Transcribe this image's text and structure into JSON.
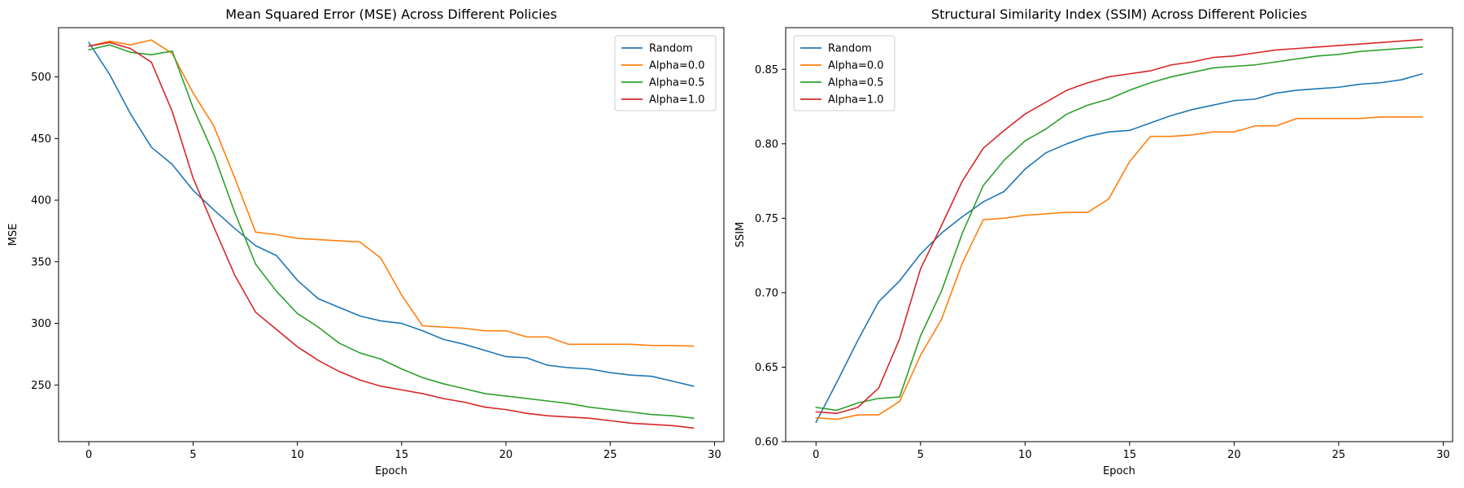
{
  "chart_data": [
    {
      "type": "line",
      "title": "Mean Squared Error (MSE) Across Different Policies",
      "xlabel": "Epoch",
      "ylabel": "MSE",
      "xlim": [
        -1.45,
        30.45
      ],
      "ylim": [
        204,
        540
      ],
      "xticks": [
        0,
        5,
        10,
        15,
        20,
        25,
        30
      ],
      "yticks": [
        250,
        300,
        350,
        400,
        450,
        500
      ],
      "tick_format": 0,
      "legend_position": "upper-right",
      "grid": false,
      "x": [
        0,
        1,
        2,
        3,
        4,
        5,
        6,
        7,
        8,
        9,
        10,
        11,
        12,
        13,
        14,
        15,
        16,
        17,
        18,
        19,
        20,
        21,
        22,
        23,
        24,
        25,
        26,
        27,
        28,
        29
      ],
      "series": [
        {
          "name": "Random",
          "color": "#1f77b4",
          "values": [
            528,
            502,
            470,
            443,
            429,
            408,
            392,
            377,
            363,
            355,
            335,
            320,
            313,
            306,
            302,
            300,
            294,
            287,
            283,
            278,
            273,
            272,
            266,
            264,
            263,
            260,
            258,
            257,
            253,
            249
          ]
        },
        {
          "name": "Alpha=0.0",
          "color": "#ff7f0e",
          "values": [
            525,
            529,
            526,
            530,
            519,
            487,
            460,
            418,
            374,
            372,
            369,
            368,
            367,
            366,
            353,
            323,
            298,
            297,
            296,
            294,
            294,
            289,
            289,
            283,
            283,
            283,
            283,
            282,
            282,
            281.5
          ]
        },
        {
          "name": "Alpha=0.5",
          "color": "#2ca02c",
          "values": [
            522,
            526,
            520,
            518,
            521,
            475,
            437,
            390,
            348,
            326,
            308,
            297,
            284,
            276,
            271,
            263,
            256,
            251,
            247,
            243,
            241,
            239,
            237,
            235,
            232,
            230,
            228,
            226,
            225,
            223
          ]
        },
        {
          "name": "Alpha=1.0",
          "color": "#d62728",
          "values": [
            525,
            528,
            523,
            512,
            472,
            418,
            378,
            339,
            309,
            295,
            281,
            270,
            261,
            254,
            249,
            246,
            243,
            239,
            236,
            232,
            230,
            227,
            225,
            224,
            223,
            221,
            219,
            218,
            217,
            215
          ]
        }
      ]
    },
    {
      "type": "line",
      "title": "Structural Similarity Index (SSIM) Across Different Policies",
      "xlabel": "Epoch",
      "ylabel": "SSIM",
      "xlim": [
        -1.45,
        30.45
      ],
      "ylim": [
        0.6,
        0.878
      ],
      "xticks": [
        0,
        5,
        10,
        15,
        20,
        25,
        30
      ],
      "yticks": [
        0.6,
        0.65,
        0.7,
        0.75,
        0.8,
        0.85
      ],
      "tick_format": 2,
      "legend_position": "upper-left",
      "grid": false,
      "x": [
        0,
        1,
        2,
        3,
        4,
        5,
        6,
        7,
        8,
        9,
        10,
        11,
        12,
        13,
        14,
        15,
        16,
        17,
        18,
        19,
        20,
        21,
        22,
        23,
        24,
        25,
        26,
        27,
        28,
        29
      ],
      "series": [
        {
          "name": "Random",
          "color": "#1f77b4",
          "values": [
            0.613,
            0.64,
            0.668,
            0.694,
            0.708,
            0.726,
            0.74,
            0.751,
            0.761,
            0.768,
            0.783,
            0.794,
            0.8,
            0.805,
            0.808,
            0.809,
            0.814,
            0.819,
            0.823,
            0.826,
            0.829,
            0.83,
            0.834,
            0.836,
            0.837,
            0.838,
            0.84,
            0.841,
            0.843,
            0.847
          ]
        },
        {
          "name": "Alpha=0.0",
          "color": "#ff7f0e",
          "values": [
            0.616,
            0.615,
            0.618,
            0.618,
            0.627,
            0.658,
            0.682,
            0.72,
            0.749,
            0.75,
            0.752,
            0.753,
            0.754,
            0.754,
            0.763,
            0.788,
            0.805,
            0.805,
            0.806,
            0.808,
            0.808,
            0.812,
            0.812,
            0.817,
            0.817,
            0.817,
            0.817,
            0.818,
            0.818,
            0.818
          ]
        },
        {
          "name": "Alpha=0.5",
          "color": "#2ca02c",
          "values": [
            0.623,
            0.621,
            0.626,
            0.629,
            0.63,
            0.671,
            0.701,
            0.74,
            0.772,
            0.789,
            0.802,
            0.81,
            0.82,
            0.826,
            0.83,
            0.836,
            0.841,
            0.845,
            0.848,
            0.851,
            0.852,
            0.853,
            0.855,
            0.857,
            0.859,
            0.86,
            0.862,
            0.863,
            0.864,
            0.865
          ]
        },
        {
          "name": "Alpha=1.0",
          "color": "#d62728",
          "values": [
            0.62,
            0.619,
            0.623,
            0.636,
            0.669,
            0.716,
            0.745,
            0.775,
            0.797,
            0.809,
            0.82,
            0.828,
            0.836,
            0.841,
            0.845,
            0.847,
            0.849,
            0.853,
            0.855,
            0.858,
            0.859,
            0.861,
            0.863,
            0.864,
            0.865,
            0.866,
            0.867,
            0.868,
            0.869,
            0.87
          ]
        }
      ]
    }
  ]
}
